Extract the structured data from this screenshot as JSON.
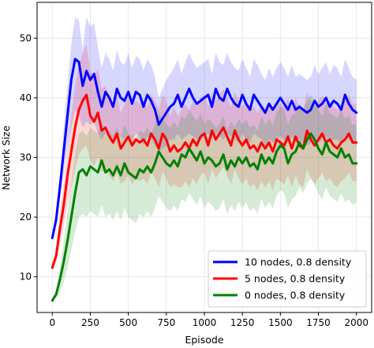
{
  "chart_data": {
    "type": "line",
    "title": "",
    "xlabel": "Episode",
    "ylabel": "Network Size",
    "xlim": [
      -100,
      2100
    ],
    "ylim": [
      4,
      56
    ],
    "xticks": [
      0,
      250,
      500,
      750,
      1000,
      1250,
      1500,
      1750,
      2000
    ],
    "yticks": [
      10,
      20,
      30,
      40,
      50
    ],
    "grid": true,
    "legend_position": "lower-right",
    "x": [
      0,
      25,
      50,
      75,
      100,
      125,
      150,
      175,
      200,
      225,
      250,
      275,
      300,
      325,
      350,
      375,
      400,
      425,
      450,
      475,
      500,
      525,
      550,
      575,
      600,
      625,
      650,
      675,
      700,
      725,
      750,
      775,
      800,
      825,
      850,
      875,
      900,
      925,
      950,
      975,
      1000,
      1025,
      1050,
      1075,
      1100,
      1125,
      1150,
      1175,
      1200,
      1225,
      1250,
      1275,
      1300,
      1325,
      1350,
      1375,
      1400,
      1425,
      1450,
      1475,
      1500,
      1525,
      1550,
      1575,
      1600,
      1625,
      1650,
      1675,
      1700,
      1725,
      1750,
      1775,
      1800,
      1825,
      1850,
      1875,
      1900,
      1925,
      1950,
      1975,
      2000
    ],
    "series": [
      {
        "name": "10 nodes, 0.8 density",
        "color": "#0000ff",
        "mean": [
          16.5,
          19.5,
          25.0,
          31.0,
          37.0,
          43.0,
          46.5,
          46.0,
          42.0,
          44.5,
          43.0,
          44.0,
          41.0,
          38.5,
          41.0,
          40.0,
          38.5,
          41.5,
          40.0,
          39.5,
          41.0,
          39.0,
          41.0,
          40.5,
          38.5,
          40.5,
          39.5,
          38.0,
          35.5,
          36.5,
          37.5,
          38.5,
          39.0,
          40.5,
          38.5,
          40.0,
          41.5,
          40.0,
          39.0,
          39.5,
          40.0,
          40.5,
          38.5,
          41.5,
          40.0,
          39.5,
          41.5,
          40.0,
          39.0,
          38.5,
          40.5,
          39.0,
          38.0,
          40.5,
          39.5,
          38.5,
          37.5,
          39.0,
          38.0,
          39.0,
          40.0,
          39.0,
          38.0,
          39.5,
          38.0,
          38.5,
          38.0,
          37.5,
          38.0,
          39.5,
          38.5,
          39.0,
          40.0,
          38.5,
          39.5,
          39.0,
          38.0,
          40.5,
          39.0,
          38.0,
          37.5
        ],
        "lower": [
          16.0,
          18.5,
          23.0,
          27.0,
          32.0,
          35.0,
          38.0,
          37.0,
          35.0,
          36.0,
          35.5,
          36.0,
          34.0,
          33.0,
          34.0,
          33.5,
          32.5,
          34.0,
          33.5,
          33.0,
          34.0,
          33.0,
          34.0,
          33.5,
          32.0,
          33.5,
          33.0,
          32.0,
          31.0,
          31.5,
          32.0,
          33.0,
          33.0,
          34.0,
          33.0,
          33.5,
          34.0,
          33.5,
          33.0,
          33.0,
          33.5,
          34.0,
          33.0,
          34.0,
          33.5,
          33.0,
          34.0,
          33.5,
          33.0,
          32.5,
          34.0,
          33.0,
          32.5,
          34.0,
          33.5,
          33.0,
          32.0,
          33.0,
          32.5,
          33.0,
          33.5,
          33.0,
          32.5,
          33.5,
          32.5,
          33.0,
          32.5,
          32.0,
          32.5,
          33.0,
          32.5,
          33.0,
          33.5,
          32.5,
          33.0,
          33.0,
          32.5,
          33.5,
          33.0,
          32.5,
          32.0
        ],
        "upper": [
          17.0,
          21.0,
          27.0,
          35.0,
          42.0,
          49.0,
          53.5,
          53.0,
          48.0,
          53.5,
          52.0,
          52.5,
          48.5,
          45.0,
          47.5,
          46.5,
          44.5,
          48.0,
          46.0,
          45.5,
          47.5,
          45.0,
          47.0,
          46.5,
          44.5,
          46.5,
          45.5,
          43.5,
          40.0,
          41.5,
          43.0,
          44.0,
          45.0,
          46.5,
          44.0,
          46.0,
          47.5,
          46.0,
          45.0,
          45.5,
          46.0,
          46.5,
          44.0,
          47.5,
          46.0,
          45.5,
          47.5,
          46.0,
          45.0,
          44.5,
          46.5,
          45.0,
          43.5,
          46.5,
          45.5,
          44.0,
          43.0,
          45.0,
          43.5,
          45.0,
          46.0,
          45.0,
          43.5,
          45.5,
          43.5,
          44.0,
          43.5,
          43.0,
          43.5,
          45.5,
          44.0,
          45.0,
          46.0,
          44.0,
          45.5,
          45.0,
          43.5,
          46.5,
          45.0,
          43.5,
          43.0
        ]
      },
      {
        "name": "5 nodes, 0.8 density",
        "color": "#ff0000",
        "mean": [
          11.5,
          13.5,
          18.0,
          22.0,
          27.0,
          31.0,
          35.0,
          38.0,
          39.5,
          40.5,
          37.0,
          36.0,
          37.5,
          34.5,
          35.0,
          33.5,
          32.5,
          34.0,
          31.5,
          32.5,
          33.5,
          32.0,
          33.0,
          32.5,
          33.0,
          32.0,
          34.0,
          33.0,
          31.5,
          34.0,
          33.0,
          31.0,
          32.0,
          31.0,
          31.5,
          32.5,
          31.5,
          33.0,
          32.0,
          33.5,
          34.0,
          32.0,
          34.5,
          33.0,
          34.0,
          35.0,
          33.5,
          32.0,
          34.5,
          33.0,
          32.0,
          33.0,
          31.5,
          32.0,
          31.0,
          32.5,
          31.5,
          32.5,
          31.0,
          33.0,
          32.5,
          32.0,
          33.5,
          31.5,
          33.5,
          32.0,
          31.5,
          34.5,
          33.0,
          32.0,
          33.0,
          34.0,
          32.5,
          33.0,
          32.0,
          31.5,
          32.5,
          33.0,
          34.0,
          32.5,
          32.5
        ],
        "lower": [
          11.0,
          12.5,
          15.0,
          18.5,
          22.0,
          25.0,
          28.0,
          30.5,
          31.5,
          32.0,
          29.5,
          28.5,
          30.0,
          27.5,
          28.0,
          27.0,
          26.0,
          27.5,
          25.5,
          26.0,
          27.0,
          25.5,
          26.5,
          26.0,
          26.5,
          25.5,
          27.5,
          26.5,
          25.0,
          27.5,
          26.5,
          25.0,
          25.5,
          25.0,
          25.0,
          26.0,
          25.0,
          26.5,
          25.5,
          27.0,
          27.5,
          25.5,
          28.0,
          26.5,
          27.5,
          28.5,
          27.0,
          25.5,
          28.0,
          26.5,
          25.5,
          26.5,
          25.0,
          25.5,
          24.5,
          26.0,
          25.0,
          26.0,
          24.5,
          26.5,
          26.0,
          25.5,
          27.0,
          25.0,
          27.0,
          25.5,
          25.0,
          28.0,
          26.5,
          25.5,
          26.5,
          27.5,
          26.0,
          26.5,
          25.5,
          25.0,
          26.0,
          26.5,
          27.5,
          26.0,
          26.0
        ],
        "upper": [
          12.0,
          14.5,
          21.0,
          25.5,
          32.0,
          37.0,
          42.0,
          45.5,
          47.5,
          49.0,
          44.5,
          43.5,
          45.0,
          41.5,
          42.0,
          40.0,
          39.0,
          40.5,
          37.5,
          39.0,
          40.0,
          38.5,
          39.5,
          39.0,
          39.5,
          38.5,
          40.5,
          39.5,
          38.0,
          40.5,
          39.5,
          37.0,
          38.5,
          37.0,
          38.0,
          39.0,
          38.0,
          39.5,
          38.5,
          40.0,
          40.5,
          38.5,
          41.0,
          39.5,
          40.5,
          41.5,
          40.0,
          38.5,
          41.0,
          39.5,
          38.5,
          39.5,
          38.0,
          38.5,
          37.5,
          39.0,
          38.0,
          39.0,
          37.5,
          39.5,
          39.0,
          38.5,
          40.0,
          38.0,
          40.0,
          38.5,
          38.0,
          41.0,
          39.5,
          38.5,
          39.5,
          40.5,
          39.0,
          39.5,
          38.5,
          38.0,
          39.0,
          39.5,
          40.5,
          39.0,
          39.0
        ]
      },
      {
        "name": "0 nodes, 0.8 density",
        "color": "#008000",
        "mean": [
          6.0,
          7.0,
          9.5,
          12.5,
          16.0,
          20.0,
          24.0,
          27.5,
          28.0,
          27.0,
          28.5,
          28.0,
          27.5,
          29.5,
          27.5,
          28.0,
          27.0,
          28.5,
          27.0,
          29.0,
          27.5,
          27.0,
          26.5,
          28.0,
          27.5,
          28.5,
          27.5,
          29.0,
          31.0,
          30.0,
          29.0,
          28.5,
          29.5,
          28.5,
          30.5,
          30.0,
          31.5,
          30.5,
          29.5,
          31.0,
          29.0,
          30.0,
          29.5,
          28.5,
          29.0,
          30.5,
          28.0,
          29.5,
          28.5,
          30.0,
          29.0,
          30.0,
          28.5,
          29.0,
          28.0,
          30.5,
          29.0,
          30.0,
          29.0,
          31.0,
          32.0,
          31.5,
          29.0,
          30.5,
          31.0,
          32.5,
          31.5,
          33.0,
          34.0,
          33.0,
          31.5,
          30.5,
          32.5,
          31.0,
          30.5,
          30.0,
          31.5,
          30.0,
          30.5,
          29.0,
          29.0
        ],
        "lower": [
          6.0,
          6.5,
          7.5,
          9.0,
          11.5,
          14.5,
          17.5,
          20.0,
          20.5,
          20.0,
          21.0,
          20.5,
          20.0,
          22.0,
          20.0,
          20.5,
          19.5,
          21.0,
          19.5,
          21.5,
          20.0,
          19.5,
          19.0,
          20.5,
          20.0,
          21.0,
          20.0,
          21.5,
          23.5,
          22.5,
          21.5,
          21.0,
          22.0,
          21.0,
          23.0,
          22.5,
          24.0,
          23.0,
          22.0,
          23.5,
          21.5,
          22.5,
          22.0,
          21.0,
          21.5,
          23.0,
          20.5,
          22.0,
          21.0,
          22.5,
          21.5,
          22.5,
          21.0,
          21.5,
          20.5,
          23.0,
          21.5,
          22.5,
          21.5,
          23.5,
          24.5,
          24.0,
          21.5,
          23.0,
          23.5,
          25.0,
          24.0,
          25.5,
          26.5,
          25.5,
          24.0,
          23.0,
          25.0,
          23.5,
          23.0,
          22.5,
          24.0,
          22.5,
          23.0,
          22.0,
          22.5
        ],
        "upper": [
          6.5,
          7.5,
          11.5,
          16.0,
          21.0,
          25.5,
          30.5,
          34.0,
          34.5,
          33.5,
          35.0,
          34.5,
          34.0,
          36.0,
          34.0,
          34.5,
          33.5,
          35.0,
          33.5,
          35.5,
          34.0,
          33.5,
          33.0,
          34.5,
          34.0,
          35.0,
          34.0,
          35.5,
          37.5,
          36.5,
          35.5,
          35.0,
          36.0,
          35.0,
          37.0,
          36.5,
          38.0,
          37.0,
          36.0,
          37.5,
          35.5,
          36.5,
          36.0,
          35.0,
          35.5,
          37.0,
          34.5,
          36.0,
          35.0,
          36.5,
          35.5,
          36.5,
          35.0,
          35.5,
          34.5,
          37.0,
          35.5,
          36.5,
          35.5,
          37.5,
          38.5,
          38.0,
          35.5,
          37.0,
          37.5,
          39.0,
          38.0,
          39.5,
          40.5,
          39.5,
          38.0,
          37.0,
          39.0,
          37.5,
          37.0,
          36.5,
          38.0,
          36.5,
          37.0,
          35.5,
          35.5
        ]
      }
    ]
  }
}
